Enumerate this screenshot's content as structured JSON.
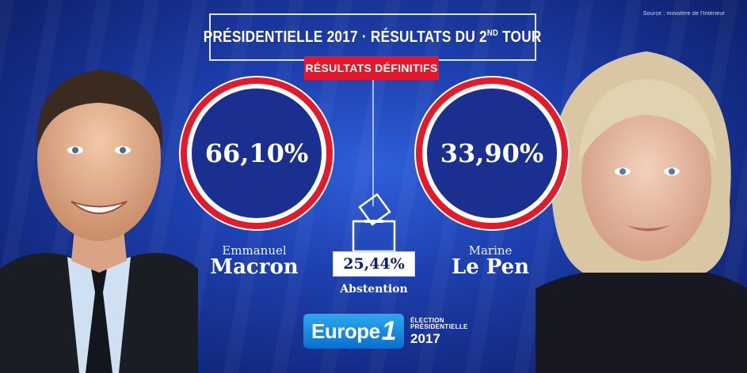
{
  "source": "Source : ministère de l'Intérieur",
  "title": {
    "main": "PRÉSIDENTIELLE 2017 · RÉSULTATS DU 2",
    "sup": "ND",
    "tail": " TOUR"
  },
  "badge": "RÉSULTATS DÉFINITIFS",
  "candidates": [
    {
      "first_name": "Emmanuel",
      "last_name": "Macron",
      "percent": "66,10%",
      "percent_value": 66.1
    },
    {
      "first_name": "Marine",
      "last_name": "Le Pen",
      "percent": "33,90%",
      "percent_value": 33.9
    }
  ],
  "abstention": {
    "value": "25,44%",
    "label": "Abstention"
  },
  "logo": {
    "brand": "Europe",
    "number": "1",
    "line1": "ÉLECTION",
    "line2": "PRÉSIDENTIELLE",
    "year": "2017"
  },
  "colors": {
    "background": "#1d3fae",
    "ring": "#e11a2c",
    "badge": "#e4172b",
    "logo": "#1a8fe0"
  },
  "icons": [
    "ballot-box-icon",
    "portrait-macron",
    "portrait-le-pen"
  ]
}
